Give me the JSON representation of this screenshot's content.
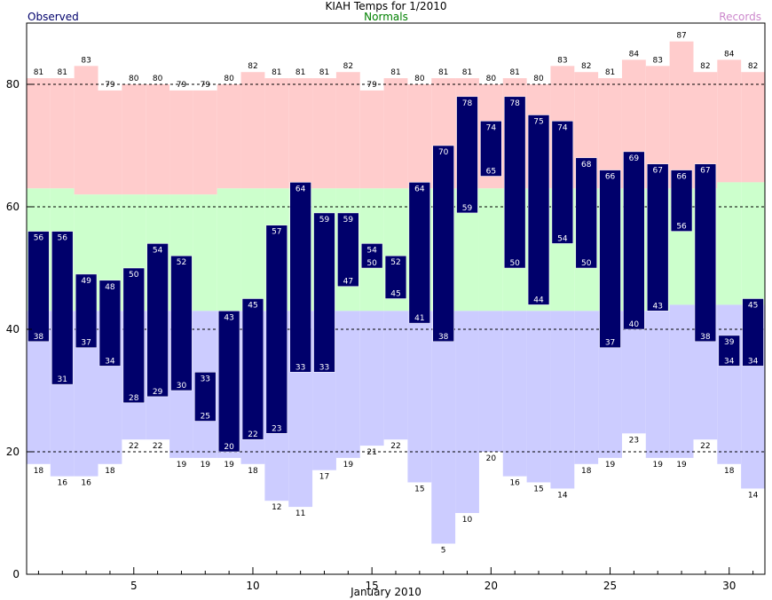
{
  "chart_data": {
    "type": "bar",
    "title": "KIAH Temps for 1/2010",
    "xlabel": "January 2010",
    "ylabel": "",
    "ylim": [
      0,
      90
    ],
    "xlim": [
      0.5,
      31.5
    ],
    "yticks": [
      0,
      20,
      40,
      60,
      80
    ],
    "xticks": [
      5,
      10,
      15,
      20,
      25,
      30
    ],
    "grid": "dashed horizontal at 20, 40, 60, 80",
    "legend": [
      {
        "label": "Observed",
        "color": "#00006b",
        "position": "top-left"
      },
      {
        "label": "Normals",
        "color": "#008000",
        "position": "top-center"
      },
      {
        "label": "Records",
        "color": "#cc88cc",
        "position": "top-right"
      }
    ],
    "colors": {
      "observed": "#00006b",
      "normal_high_band": "#ffcccc",
      "normal_range_band": "#ccffcc",
      "normal_low_band": "#ccccff",
      "record_high_band": "#ffcccc",
      "record_low_band": "#ccccff"
    },
    "days": [
      1,
      2,
      3,
      4,
      5,
      6,
      7,
      8,
      9,
      10,
      11,
      12,
      13,
      14,
      15,
      16,
      17,
      18,
      19,
      20,
      21,
      22,
      23,
      24,
      25,
      26,
      27,
      28,
      29,
      30,
      31
    ],
    "series": [
      {
        "name": "Observed High",
        "values": [
          56,
          56,
          49,
          48,
          50,
          54,
          52,
          33,
          43,
          45,
          57,
          64,
          59,
          59,
          54,
          52,
          64,
          70,
          78,
          74,
          78,
          75,
          74,
          68,
          66,
          69,
          67,
          66,
          67,
          39,
          45
        ]
      },
      {
        "name": "Observed Low",
        "values": [
          38,
          31,
          37,
          34,
          28,
          29,
          30,
          25,
          20,
          22,
          23,
          33,
          33,
          47,
          50,
          45,
          41,
          38,
          59,
          65,
          50,
          44,
          54,
          50,
          37,
          40,
          43,
          56,
          38,
          34,
          34
        ]
      },
      {
        "name": "Normal High",
        "values": [
          63,
          63,
          62,
          62,
          62,
          62,
          62,
          62,
          63,
          63,
          63,
          63,
          63,
          63,
          63,
          63,
          63,
          63,
          63,
          63,
          63,
          63,
          63,
          63,
          63,
          63,
          63,
          63,
          63,
          64,
          64
        ]
      },
      {
        "name": "Normal Low",
        "values": [
          43,
          43,
          43,
          43,
          43,
          43,
          43,
          43,
          43,
          43,
          43,
          43,
          43,
          43,
          43,
          43,
          43,
          43,
          43,
          43,
          43,
          43,
          43,
          43,
          43,
          43,
          43,
          44,
          44,
          44,
          44
        ]
      },
      {
        "name": "Record High",
        "values": [
          81,
          81,
          83,
          79,
          80,
          80,
          79,
          79,
          80,
          82,
          81,
          81,
          81,
          82,
          79,
          81,
          80,
          81,
          81,
          80,
          81,
          80,
          83,
          82,
          81,
          84,
          83,
          87,
          82,
          84,
          82
        ]
      },
      {
        "name": "Record Low",
        "values": [
          18,
          16,
          16,
          18,
          22,
          22,
          19,
          19,
          19,
          18,
          12,
          11,
          17,
          19,
          21,
          22,
          15,
          5,
          10,
          20,
          16,
          15,
          14,
          18,
          19,
          23,
          19,
          19,
          22,
          18,
          14
        ]
      }
    ]
  }
}
